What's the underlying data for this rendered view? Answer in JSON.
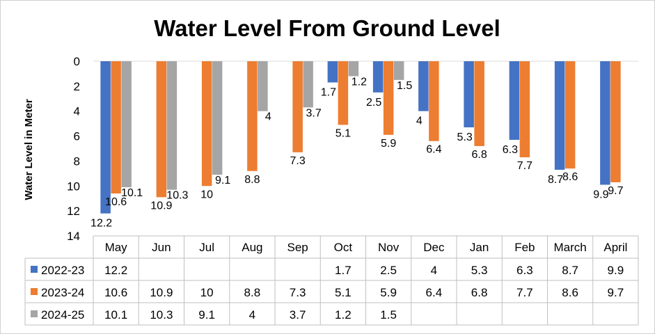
{
  "chart_data": {
    "type": "bar",
    "title": "Water Level From Ground Level",
    "ylabel": "Water Level in Meter",
    "xlabel": "",
    "y_inverted": true,
    "ylim": [
      0,
      14
    ],
    "y_ticks": [
      "0",
      "2",
      "4",
      "6",
      "8",
      "10",
      "12",
      "14"
    ],
    "grid": false,
    "legend_placement": "data-table-left",
    "categories": [
      "May",
      "Jun",
      "Jul",
      "Aug",
      "Sep",
      "Oct",
      "Nov",
      "Dec",
      "Jan",
      "Feb",
      "March",
      "April"
    ],
    "series": [
      {
        "name": "2022-23",
        "color": "#4472C4",
        "values": [
          12.2,
          null,
          null,
          null,
          null,
          1.7,
          2.5,
          4,
          5.3,
          6.3,
          8.7,
          9.9
        ]
      },
      {
        "name": "2023-24",
        "color": "#ED7D31",
        "values": [
          10.6,
          10.9,
          10,
          8.8,
          7.3,
          5.1,
          5.9,
          6.4,
          6.8,
          7.7,
          8.6,
          9.7
        ]
      },
      {
        "name": "2024-25",
        "color": "#A5A5A5",
        "values": [
          10.1,
          10.3,
          9.1,
          4,
          3.7,
          1.2,
          1.5,
          null,
          null,
          null,
          null,
          null
        ]
      }
    ]
  }
}
